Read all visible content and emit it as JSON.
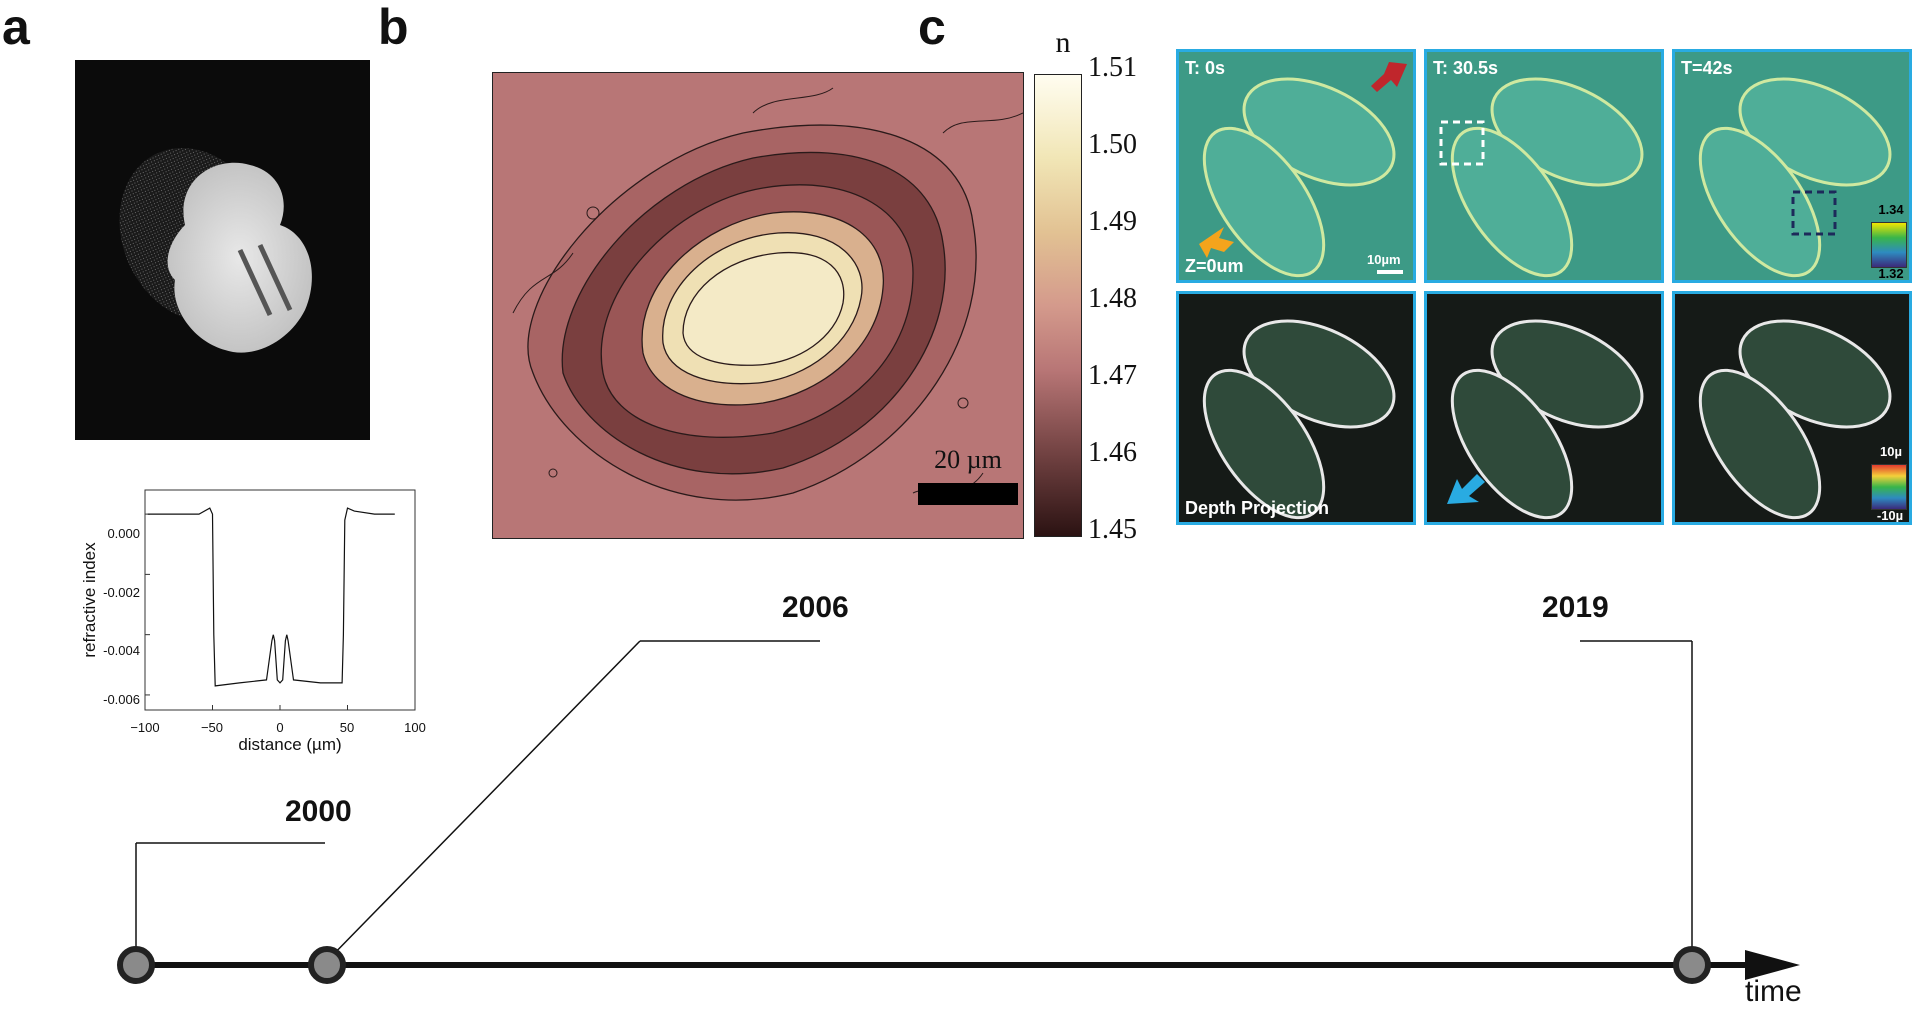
{
  "panels": {
    "a": {
      "letter": "a",
      "profile": {
        "ylabel": "refractive index",
        "xlabel": "distance (µm)",
        "yticks": [
          "0.000",
          "-0.002",
          "-0.004",
          "-0.006"
        ],
        "xticks": [
          "−100",
          "−50",
          "0",
          "50",
          "100"
        ]
      }
    },
    "b": {
      "letter": "b",
      "colorbar_title": "n",
      "colorbar_ticks": [
        "1.51",
        "1.50",
        "1.49",
        "1.48",
        "1.47",
        "1.46",
        "1.45"
      ],
      "scalebar_label": "20 µm"
    },
    "c": {
      "letter": "c",
      "time_labels": [
        "T: 0s",
        "T: 30.5s",
        "T=42s"
      ],
      "z_label": "Z=0um",
      "scale_label": "10µm",
      "depth_label": "Depth Projection",
      "ri_scale": [
        "1.34",
        "1.32"
      ],
      "depth_scale": [
        "10µ",
        "-10µ"
      ]
    }
  },
  "timeline": {
    "years": [
      "2000",
      "2006",
      "2019"
    ],
    "axis_label": "time"
  },
  "chart_data": {
    "type": "line",
    "title": "",
    "xlabel": "distance (µm)",
    "ylabel": "refractive index",
    "xlim": [
      -100,
      100
    ],
    "ylim": [
      -0.0065,
      0.0008
    ],
    "series": [
      {
        "x": [
          -98,
          -80,
          -60,
          -52,
          -50,
          -49,
          -48,
          -30,
          -10,
          -6,
          -5,
          -4,
          -2,
          0,
          2,
          4,
          5,
          6,
          10,
          30,
          46,
          47,
          48,
          50,
          55,
          70,
          85
        ],
        "values": [
          0.0,
          0.0,
          0.0,
          0.0002,
          0.0,
          -0.004,
          -0.0057,
          -0.0056,
          -0.0055,
          -0.0042,
          -0.004,
          -0.0042,
          -0.0055,
          -0.0056,
          -0.0055,
          -0.0042,
          -0.004,
          -0.0042,
          -0.0055,
          -0.0056,
          -0.0056,
          -0.004,
          -0.0002,
          0.0002,
          0.0001,
          0.0,
          0.0
        ]
      }
    ]
  }
}
